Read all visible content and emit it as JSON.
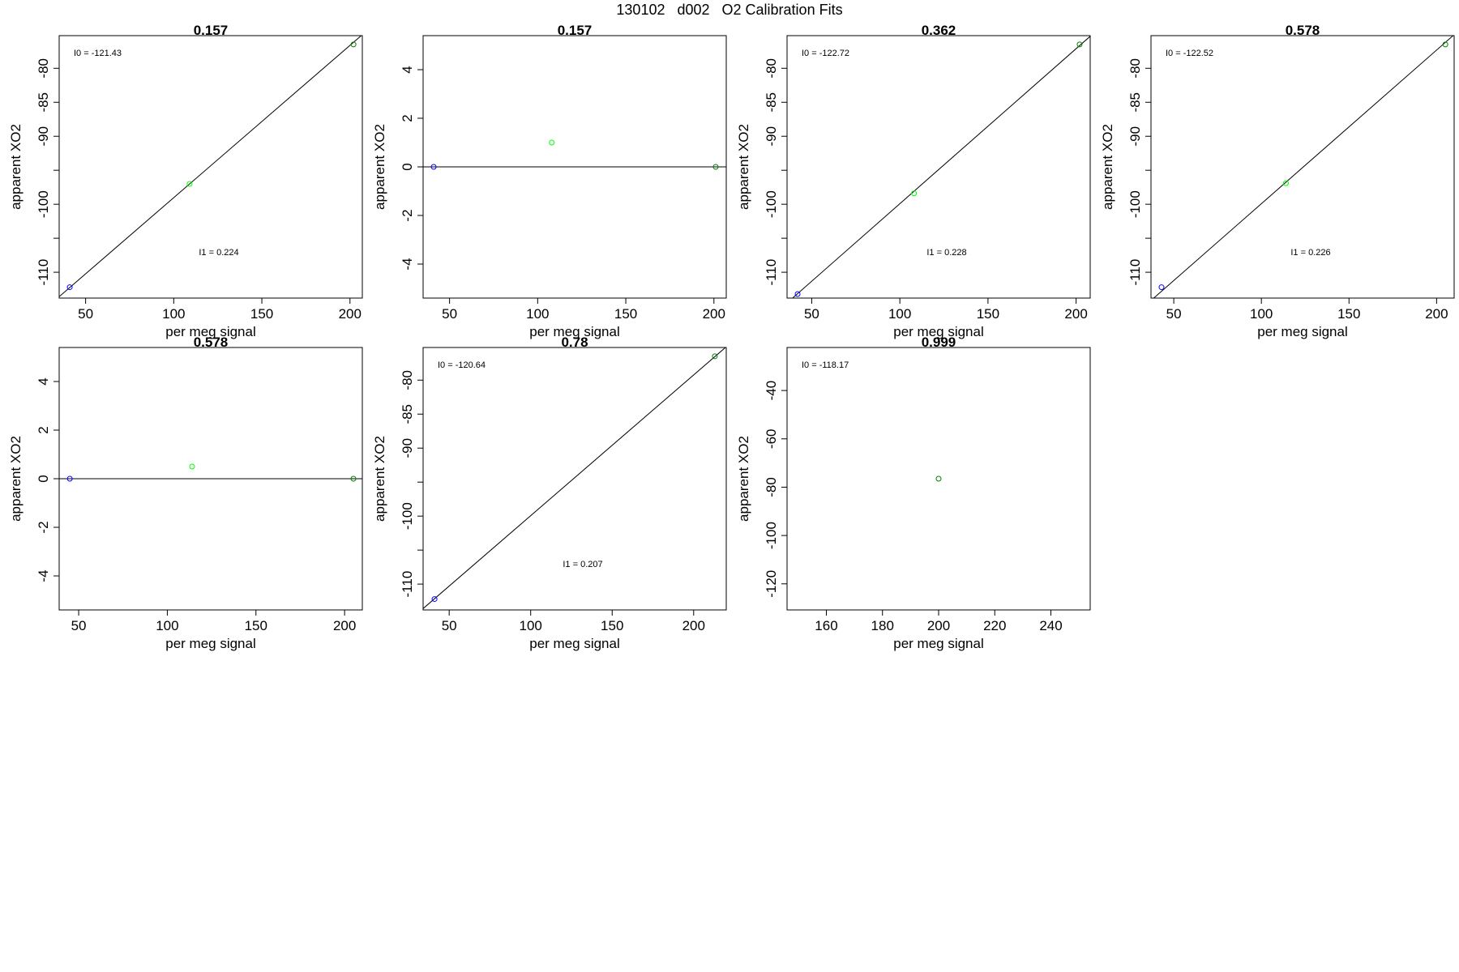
{
  "figure": {
    "title": "130102   d002   O2 Calibration Fits"
  },
  "colors": {
    "axis": "#000000",
    "fit_line": "#000000",
    "low_point": "#0000ff",
    "mid_point": "#00ff00",
    "high_point": "#008000"
  },
  "chart_data": [
    {
      "type": "scatter",
      "title": "0.157",
      "xlabel": "per meg signal",
      "ylabel": "apparent XO2",
      "xlim": [
        35,
        207
      ],
      "ylim": [
        -113.8,
        -75.2
      ],
      "xticks": [
        50,
        100,
        150,
        200
      ],
      "yticks": [
        -80,
        -85,
        -90,
        -95,
        -100,
        -105,
        -110
      ],
      "ytick_labels": [
        "-80",
        "-85",
        "-90",
        "",
        "-100",
        "",
        "-110"
      ],
      "points": [
        {
          "x": 41,
          "y": -112.2,
          "color": "#0000ff"
        },
        {
          "x": 109,
          "y": -97.0,
          "color": "#00ff00"
        },
        {
          "x": 202,
          "y": -76.5,
          "color": "#008000"
        }
      ],
      "fit_line": {
        "intercept": -121.43,
        "slope": 0.224
      },
      "annotations": {
        "i0": "I0 =  -121.43",
        "i1": "I1 =  0.224"
      }
    },
    {
      "type": "scatter",
      "title": "0.157",
      "xlabel": "per meg signal",
      "ylabel": "apparent XO2",
      "xlim": [
        35,
        207
      ],
      "ylim": [
        -5.4,
        5.4
      ],
      "xticks": [
        50,
        100,
        150,
        200
      ],
      "yticks": [
        4,
        2,
        0,
        -2,
        -4
      ],
      "ytick_labels": [
        "4",
        "2",
        "0",
        "-2",
        "-4"
      ],
      "points": [
        {
          "x": 41,
          "y": 0,
          "color": "#0000ff"
        },
        {
          "x": 108,
          "y": 1.0,
          "color": "#00ff00"
        },
        {
          "x": 201,
          "y": 0,
          "color": "#008000"
        }
      ],
      "fit_line": {
        "intercept": 0,
        "slope": 0
      },
      "annotations": {
        "i0": "",
        "i1": ""
      }
    },
    {
      "type": "scatter",
      "title": "0.362",
      "xlabel": "per meg signal",
      "ylabel": "apparent XO2",
      "xlim": [
        36,
        208
      ],
      "ylim": [
        -113.8,
        -75.2
      ],
      "xticks": [
        50,
        100,
        150,
        200
      ],
      "yticks": [
        -80,
        -85,
        -90,
        -95,
        -100,
        -105,
        -110
      ],
      "ytick_labels": [
        "-80",
        "-85",
        "-90",
        "",
        "-100",
        "",
        "-110"
      ],
      "points": [
        {
          "x": 42,
          "y": -113.2,
          "color": "#0000ff"
        },
        {
          "x": 108,
          "y": -98.4,
          "color": "#00ff00"
        },
        {
          "x": 202,
          "y": -76.5,
          "color": "#008000"
        }
      ],
      "fit_line": {
        "intercept": -122.72,
        "slope": 0.228
      },
      "annotations": {
        "i0": "I0 =  -122.72",
        "i1": "I1 =  0.228"
      }
    },
    {
      "type": "scatter",
      "title": "0.578",
      "xlabel": "per meg signal",
      "ylabel": "apparent XO2",
      "xlim": [
        37,
        210
      ],
      "ylim": [
        -113.8,
        -75.2
      ],
      "xticks": [
        50,
        100,
        150,
        200
      ],
      "yticks": [
        -80,
        -85,
        -90,
        -95,
        -100,
        -105,
        -110
      ],
      "ytick_labels": [
        "-80",
        "-85",
        "-90",
        "",
        "-100",
        "",
        "-110"
      ],
      "points": [
        {
          "x": 43,
          "y": -112.2,
          "color": "#0000ff"
        },
        {
          "x": 114,
          "y": -96.9,
          "color": "#00ff00"
        },
        {
          "x": 205,
          "y": -76.5,
          "color": "#008000"
        }
      ],
      "fit_line": {
        "intercept": -122.52,
        "slope": 0.226
      },
      "annotations": {
        "i0": "I0 =  -122.52",
        "i1": "I1 =  0.226"
      }
    },
    {
      "type": "scatter",
      "title": "0.578",
      "xlabel": "per meg signal",
      "ylabel": "apparent XO2",
      "xlim": [
        39,
        210
      ],
      "ylim": [
        -5.4,
        5.4
      ],
      "xticks": [
        50,
        100,
        150,
        200
      ],
      "yticks": [
        4,
        2,
        0,
        -2,
        -4
      ],
      "ytick_labels": [
        "4",
        "2",
        "0",
        "-2",
        "-4"
      ],
      "points": [
        {
          "x": 45,
          "y": 0,
          "color": "#0000ff"
        },
        {
          "x": 114,
          "y": 0.5,
          "color": "#00ff00"
        },
        {
          "x": 205,
          "y": 0,
          "color": "#008000"
        }
      ],
      "fit_line": {
        "intercept": 0,
        "slope": 0
      },
      "annotations": {
        "i0": "",
        "i1": ""
      }
    },
    {
      "type": "scatter",
      "title": "0.78",
      "xlabel": "per meg signal",
      "ylabel": "apparent XO2",
      "xlim": [
        34,
        220
      ],
      "ylim": [
        -113.8,
        -75.2
      ],
      "xticks": [
        50,
        100,
        150,
        200
      ],
      "yticks": [
        -80,
        -85,
        -90,
        -95,
        -100,
        -105,
        -110
      ],
      "ytick_labels": [
        "-80",
        "-85",
        "-90",
        "",
        "-100",
        "",
        "-110"
      ],
      "points": [
        {
          "x": 41,
          "y": -112.2,
          "color": "#0000ff"
        },
        {
          "x": 213,
          "y": -76.5,
          "color": "#008000"
        }
      ],
      "fit_line": {
        "intercept": -120.64,
        "slope": 0.207
      },
      "annotations": {
        "i0": "I0 =  -120.64",
        "i1": "I1 =  0.207"
      }
    },
    {
      "type": "scatter",
      "title": "0.999",
      "xlabel": "per meg signal",
      "ylabel": "apparent XO2",
      "xlim": [
        146,
        254
      ],
      "ylim": [
        -130.8,
        -22.2
      ],
      "xticks": [
        160,
        180,
        200,
        220,
        240
      ],
      "yticks": [
        -40,
        -60,
        -80,
        -100,
        -120
      ],
      "ytick_labels": [
        "-40",
        "-60",
        "-80",
        "-100",
        "-120"
      ],
      "points": [
        {
          "x": 200,
          "y": -76.5,
          "color": "#008000"
        }
      ],
      "fit_line": null,
      "annotations": {
        "i0": "I0 =  -118.17",
        "i1": ""
      }
    }
  ]
}
